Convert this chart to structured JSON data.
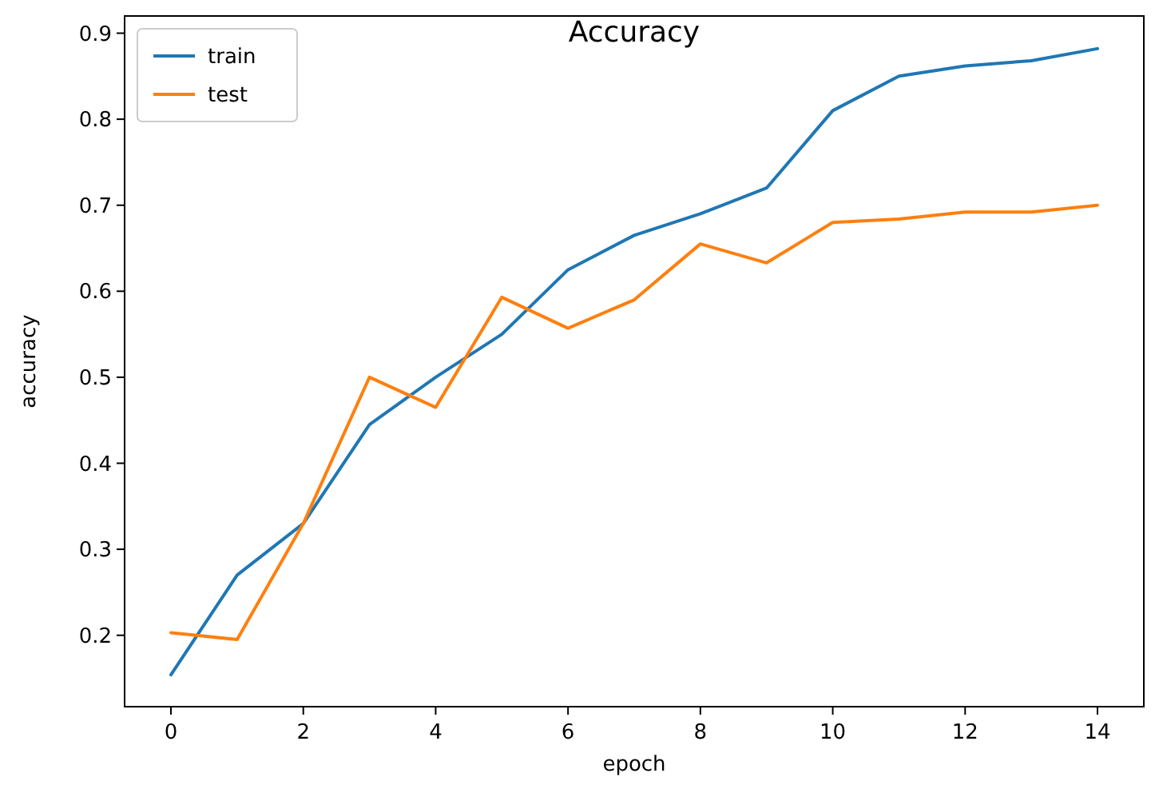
{
  "chart_data": {
    "type": "line",
    "title": "Accuracy",
    "xlabel": "epoch",
    "ylabel": "accuracy",
    "x": [
      0,
      1,
      2,
      3,
      4,
      5,
      6,
      7,
      8,
      9,
      10,
      11,
      12,
      13,
      14
    ],
    "series": [
      {
        "name": "train",
        "color": "#1f77b4",
        "values": [
          0.154,
          0.27,
          0.33,
          0.445,
          0.5,
          0.55,
          0.625,
          0.665,
          0.69,
          0.72,
          0.81,
          0.85,
          0.862,
          0.868,
          0.882
        ]
      },
      {
        "name": "test",
        "color": "#ff7f0e",
        "values": [
          0.203,
          0.195,
          0.33,
          0.5,
          0.465,
          0.593,
          0.557,
          0.59,
          0.655,
          0.633,
          0.68,
          0.684,
          0.692,
          0.692,
          0.7
        ]
      }
    ],
    "xlim": [
      -0.7,
      14.7
    ],
    "ylim": [
      0.117,
      0.92
    ],
    "xticks": [
      0,
      2,
      4,
      6,
      8,
      10,
      12,
      14
    ],
    "yticks": [
      0.2,
      0.3,
      0.4,
      0.5,
      0.6,
      0.7,
      0.8,
      0.9
    ],
    "grid": false,
    "legend": "top left",
    "marker": "none",
    "line_style": "solid"
  }
}
